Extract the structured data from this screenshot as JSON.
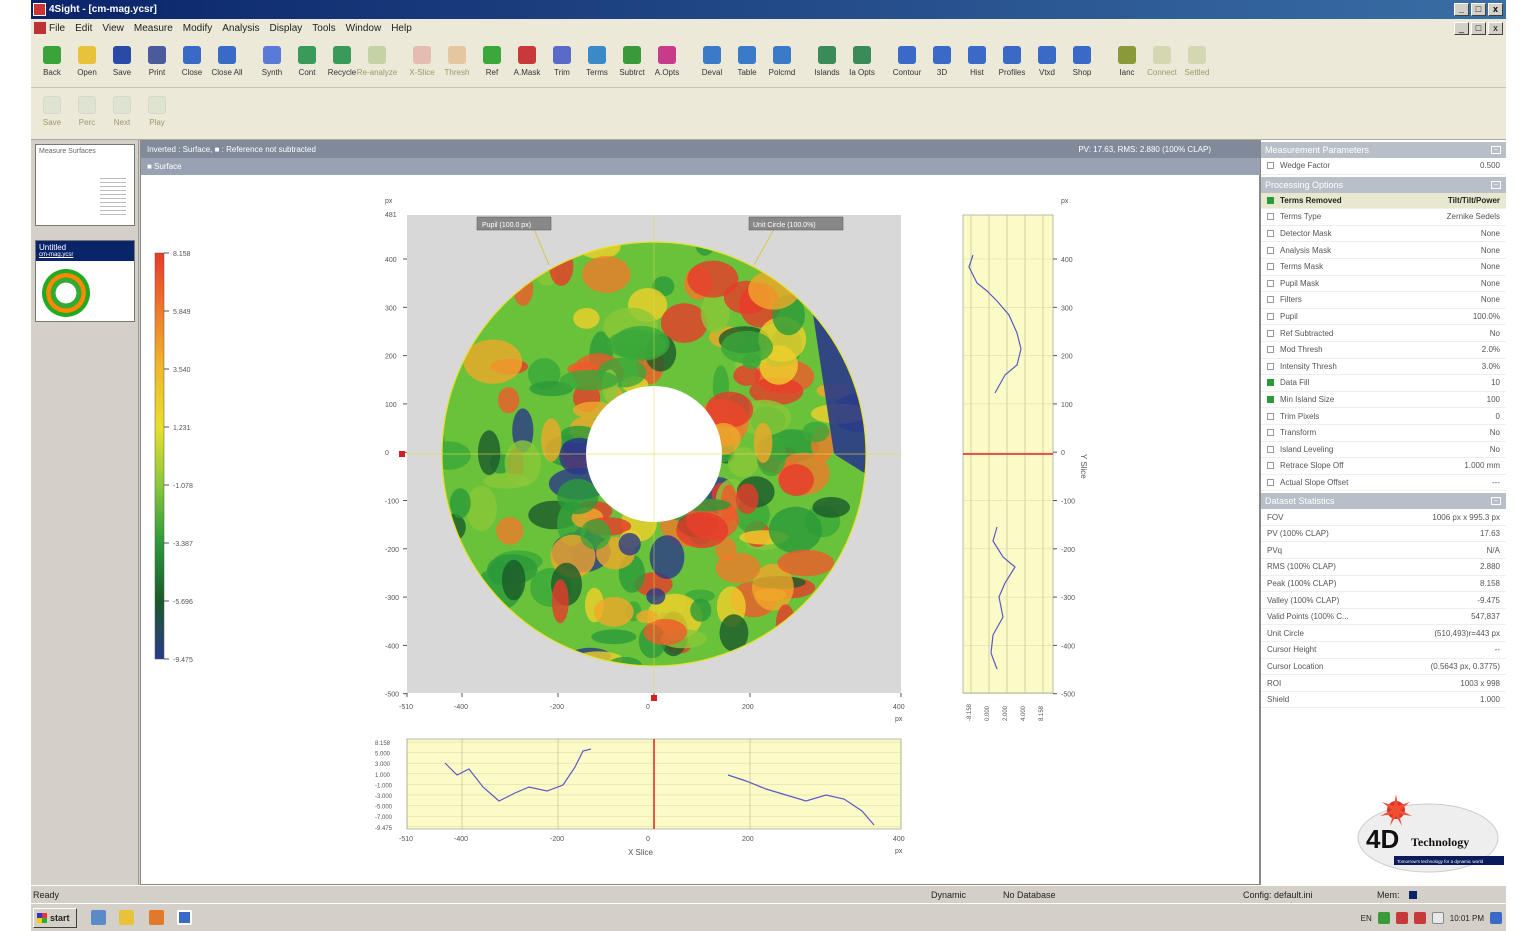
{
  "window": {
    "title": "4Sight - [cm-mag.ycsr]",
    "min": "_",
    "max": "□",
    "close": "x"
  },
  "menu": [
    "File",
    "Edit",
    "View",
    "Measure",
    "Modify",
    "Analysis",
    "Display",
    "Tools",
    "Window",
    "Help"
  ],
  "toolbar": [
    {
      "label": "Back",
      "icon": "back-icon",
      "color": "#3aa33a",
      "enabled": true
    },
    {
      "label": "Open",
      "icon": "folder-icon",
      "color": "#e8c23a",
      "enabled": true
    },
    {
      "label": "Save",
      "icon": "save-icon",
      "color": "#2a4aa8",
      "enabled": true
    },
    {
      "label": "Print",
      "icon": "print-icon",
      "color": "#4a5a9a",
      "enabled": true
    },
    {
      "label": "Close",
      "icon": "close-doc-icon",
      "color": "#3a6ac8",
      "enabled": true
    },
    {
      "label": "Close All",
      "icon": "close-all-icon",
      "color": "#3a6ac8",
      "enabled": true
    },
    {
      "label": "gap"
    },
    {
      "label": "Synth",
      "icon": "synth-icon",
      "color": "#5a7ad8",
      "enabled": true
    },
    {
      "label": "Cont",
      "icon": "cont-icon",
      "color": "#3a9a5a",
      "enabled": true
    },
    {
      "label": "Recycle",
      "icon": "recycle-icon",
      "color": "#3a9a5a",
      "enabled": true
    },
    {
      "label": "Re-analyze",
      "icon": "reanalyze-icon",
      "color": "#7aa84a",
      "enabled": false
    },
    {
      "label": "gap"
    },
    {
      "label": "X-Slice",
      "icon": "xslice-icon",
      "color": "#d86a6a",
      "enabled": false
    },
    {
      "label": "Thresh",
      "icon": "thresh-icon",
      "color": "#d88a3a",
      "enabled": false
    },
    {
      "label": "Ref",
      "icon": "ref-icon",
      "color": "#3aa83a",
      "enabled": true
    },
    {
      "label": "A.Mask",
      "icon": "mask-icon",
      "color": "#c83a3a",
      "enabled": true
    },
    {
      "label": "Trim",
      "icon": "trim-icon",
      "color": "#5a6ac8",
      "enabled": true
    },
    {
      "label": "Terms",
      "icon": "terms-icon",
      "color": "#3a8ac8",
      "enabled": true
    },
    {
      "label": "Subtrct",
      "icon": "subtract-icon",
      "color": "#3a9a3a",
      "enabled": true
    },
    {
      "label": "A.Opts",
      "icon": "aopts-icon",
      "color": "#c83a8a",
      "enabled": true
    },
    {
      "label": "gap"
    },
    {
      "label": "Deval",
      "icon": "deval-icon",
      "color": "#3a7ac8",
      "enabled": true
    },
    {
      "label": "Table",
      "icon": "table-icon",
      "color": "#3a7ac8",
      "enabled": true
    },
    {
      "label": "Polcmd",
      "icon": "polcmd-icon",
      "color": "#3a7ac8",
      "enabled": true
    },
    {
      "label": "gap"
    },
    {
      "label": "Islands",
      "icon": "islands-icon",
      "color": "#3a8a5a",
      "enabled": true
    },
    {
      "label": "Ia Opts",
      "icon": "iaopts-icon",
      "color": "#3a8a5a",
      "enabled": true
    },
    {
      "label": "gap"
    },
    {
      "label": "Contour",
      "icon": "contour-icon",
      "color": "#3a6ac8",
      "enabled": true
    },
    {
      "label": "3D",
      "icon": "3d-icon",
      "color": "#3a6ac8",
      "enabled": true
    },
    {
      "label": "Hist",
      "icon": "hist-icon",
      "color": "#3a6ac8",
      "enabled": true
    },
    {
      "label": "Profiles",
      "icon": "profiles-icon",
      "color": "#3a6ac8",
      "enabled": true
    },
    {
      "label": "Vtxd",
      "icon": "vtxd-icon",
      "color": "#3a6ac8",
      "enabled": true
    },
    {
      "label": "Shop",
      "icon": "shop-icon",
      "color": "#3a6ac8",
      "enabled": true
    },
    {
      "label": "gap"
    },
    {
      "label": "Ianc",
      "icon": "ianc-icon",
      "color": "#8a9a3a",
      "enabled": true
    },
    {
      "label": "Connect",
      "icon": "connect-icon",
      "color": "#aaba6a",
      "enabled": false
    },
    {
      "label": "Settled",
      "icon": "settled-icon",
      "color": "#aaba6a",
      "enabled": false
    }
  ],
  "toolbar2": [
    "Save",
    "Perc",
    "Next",
    "Play"
  ],
  "left_panel": {
    "thumb1_label": "Measure Surfaces",
    "thumb2_label": "Untitled",
    "thumb2_sub": "cm-mag.ycsr"
  },
  "main": {
    "header": "Inverted : Surface, ■ : Reference not subtracted",
    "header_right": "PV: 17.63, RMS: 2.880 (100% CLAP)",
    "subheader": "■ Surface"
  },
  "right_panel": {
    "measurement": {
      "title": "Measurement Parameters",
      "rows": [
        {
          "label": "Wedge Factor",
          "value": "0.500",
          "checked": false
        }
      ]
    },
    "processing": {
      "title": "Processing Options",
      "rows": [
        {
          "label": "Terms Removed",
          "value": "Tilt/Tilt/Power",
          "checked": true,
          "highlight": true
        },
        {
          "label": "Terms Type",
          "value": "Zernike Sedels",
          "checked": false
        },
        {
          "label": "Detector Mask",
          "value": "None",
          "checked": false
        },
        {
          "label": "Analysis Mask",
          "value": "None",
          "checked": false
        },
        {
          "label": "Terms Mask",
          "value": "None",
          "checked": false
        },
        {
          "label": "Pupil Mask",
          "value": "None",
          "checked": false
        },
        {
          "label": "Filters",
          "value": "None",
          "checked": false
        },
        {
          "label": "Pupil",
          "value": "100.0%",
          "checked": false
        },
        {
          "label": "Ref Subtracted",
          "value": "No",
          "checked": false
        },
        {
          "label": "Mod Thresh",
          "value": "2.0%",
          "checked": false
        },
        {
          "label": "Intensity Thresh",
          "value": "3.0%",
          "checked": false
        },
        {
          "label": "Data Fill",
          "value": "10",
          "checked": true
        },
        {
          "label": "Min Island Size",
          "value": "100",
          "checked": true
        },
        {
          "label": "Trim Pixels",
          "value": "0",
          "checked": false
        },
        {
          "label": "Transform",
          "value": "No",
          "checked": false
        },
        {
          "label": "Island Leveling",
          "value": "No",
          "checked": false
        },
        {
          "label": "Retrace Slope Off",
          "value": "1.000 mm",
          "checked": false
        },
        {
          "label": "Actual Slope Offset",
          "value": "---",
          "checked": false
        }
      ]
    },
    "stats": {
      "title": "Dataset Statistics",
      "rows": [
        {
          "label": "FOV",
          "value": "1006 px x 995.3 px"
        },
        {
          "label": "PV (100% CLAP)",
          "value": "17.63"
        },
        {
          "label": "PVq",
          "value": "N/A"
        },
        {
          "label": "RMS (100% CLAP)",
          "value": "2.880"
        },
        {
          "label": "Peak (100% CLAP)",
          "value": "8.158"
        },
        {
          "label": "Valley (100% CLAP)",
          "value": "-9.475"
        },
        {
          "label": "Valid Points (100% C...",
          "value": "547,837"
        },
        {
          "label": "Unit Circle",
          "value": "(510,493)r=443 px"
        },
        {
          "label": "Cursor Height",
          "value": "--"
        },
        {
          "label": "Cursor Location",
          "value": "(0.5643 px, 0.3775)"
        },
        {
          "label": "ROI",
          "value": "1003 x 998"
        },
        {
          "label": "Shield",
          "value": "1.000"
        }
      ]
    }
  },
  "plot": {
    "colorbar_ticks": [
      "8.158",
      "5.849",
      "3.540",
      "1.231",
      "-1.078",
      "-3.387",
      "-5.696",
      "-9.475"
    ],
    "colorbar_colors": [
      "#e83a2a",
      "#f07a2a",
      "#f0b82a",
      "#e8e02a",
      "#8ac83a",
      "#2a9a3a",
      "#1a5a2a",
      "#2a3a8a"
    ],
    "y_unit": "px",
    "y_ticks": [
      "400",
      "300",
      "200",
      "100",
      "0",
      "-100",
      "-200",
      "-300",
      "-400",
      "-500"
    ],
    "y_top": "481",
    "x_ticks": [
      "-510",
      "-400",
      "-200",
      "0",
      "200",
      "400"
    ],
    "x_unit": "px",
    "callout_left": "Pupil (100.0 px)",
    "callout_right": "Unit Circle (100.0%)",
    "yslice_label": "Y Slice",
    "yslice_ticks": [
      "-8.158",
      "0.000",
      "2.000",
      "4.000",
      "8.158"
    ],
    "xslice_label": "X Slice",
    "xslice_y_ticks": [
      "8.158",
      "5.000",
      "3.000",
      "1.000",
      "-1.000",
      "-3.000",
      "-5.000",
      "-7.000",
      "-9.475"
    ],
    "xslice_x_ticks": [
      "-510",
      "-400",
      "-200",
      "0",
      "200",
      "400"
    ]
  },
  "logo": {
    "brand": "4D",
    "word": "Technology",
    "tagline": "Tomorrow's technology for a dynamic world"
  },
  "status": {
    "ready": "Ready",
    "mode": "Dynamic",
    "db": "No Database",
    "config": "Config: default.ini",
    "mem": "Mem:"
  },
  "taskbar": {
    "start": "start",
    "lang": "EN",
    "clock": "10:01 PM"
  }
}
